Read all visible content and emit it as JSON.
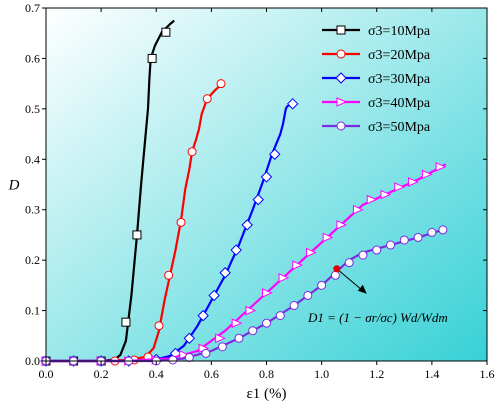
{
  "chart_data": {
    "type": "line",
    "xlabel": "ε1 (%)",
    "ylabel": "D",
    "xlim": [
      0,
      1.6
    ],
    "ylim": [
      0,
      0.7
    ],
    "xticks": [
      "0.0",
      "0.2",
      "0.4",
      "0.6",
      "0.8",
      "1.0",
      "1.2",
      "1.4",
      "1.6"
    ],
    "yticks": [
      "0.0",
      "0.1",
      "0.2",
      "0.3",
      "0.4",
      "0.5",
      "0.6",
      "0.7"
    ],
    "background": {
      "from": "#ffffff",
      "to": "#36d1d6"
    },
    "legend_position": "top-right",
    "series": [
      {
        "name": "σ3=10Mpa",
        "label_main": "σ",
        "label_sub": "3",
        "label_rest": "=10Mpa",
        "color": "#000000",
        "marker": "square",
        "points": [
          [
            0.0,
            0
          ],
          [
            0.1,
            0
          ],
          [
            0.2,
            0
          ],
          [
            0.25,
            0.003
          ],
          [
            0.27,
            0.012
          ],
          [
            0.29,
            0.04
          ],
          [
            0.31,
            0.13
          ],
          [
            0.33,
            0.25
          ],
          [
            0.345,
            0.35
          ],
          [
            0.36,
            0.44
          ],
          [
            0.37,
            0.5
          ],
          [
            0.375,
            0.56
          ],
          [
            0.38,
            0.6
          ],
          [
            0.395,
            0.625
          ],
          [
            0.42,
            0.652
          ],
          [
            0.45,
            0.668
          ],
          [
            0.465,
            0.675
          ]
        ],
        "markers_at": [
          [
            0.0,
            0
          ],
          [
            0.1,
            0
          ],
          [
            0.2,
            0
          ],
          [
            0.29,
            0.077
          ],
          [
            0.33,
            0.25
          ],
          [
            0.385,
            0.6
          ],
          [
            0.435,
            0.652
          ]
        ]
      },
      {
        "name": "σ3=20Mpa",
        "label_main": "σ",
        "label_sub": "3",
        "label_rest": "=20Mpa",
        "color": "#ff0000",
        "marker": "circle",
        "points": [
          [
            0.0,
            0
          ],
          [
            0.2,
            0
          ],
          [
            0.3,
            0.002
          ],
          [
            0.36,
            0.008
          ],
          [
            0.39,
            0.025
          ],
          [
            0.41,
            0.06
          ],
          [
            0.43,
            0.12
          ],
          [
            0.45,
            0.17
          ],
          [
            0.47,
            0.22
          ],
          [
            0.49,
            0.28
          ],
          [
            0.505,
            0.34
          ],
          [
            0.52,
            0.38
          ],
          [
            0.53,
            0.415
          ],
          [
            0.545,
            0.44
          ],
          [
            0.555,
            0.46
          ],
          [
            0.565,
            0.49
          ],
          [
            0.575,
            0.505
          ],
          [
            0.585,
            0.52
          ],
          [
            0.61,
            0.535
          ],
          [
            0.635,
            0.548
          ],
          [
            0.645,
            0.552
          ]
        ],
        "markers_at": [
          [
            0.0,
            0
          ],
          [
            0.1,
            0
          ],
          [
            0.2,
            0
          ],
          [
            0.25,
            0
          ],
          [
            0.32,
            0.002
          ],
          [
            0.37,
            0.008
          ],
          [
            0.41,
            0.07
          ],
          [
            0.445,
            0.17
          ],
          [
            0.49,
            0.275
          ],
          [
            0.53,
            0.415
          ],
          [
            0.585,
            0.52
          ],
          [
            0.635,
            0.55
          ]
        ]
      },
      {
        "name": "σ3=30Mpa",
        "label_main": "σ",
        "label_sub": "3",
        "label_rest": "=30Mpa",
        "color": "#0000ff",
        "marker": "diamond",
        "points": [
          [
            0.0,
            0
          ],
          [
            0.3,
            0
          ],
          [
            0.4,
            0.003
          ],
          [
            0.45,
            0.01
          ],
          [
            0.5,
            0.03
          ],
          [
            0.55,
            0.07
          ],
          [
            0.6,
            0.12
          ],
          [
            0.65,
            0.17
          ],
          [
            0.7,
            0.23
          ],
          [
            0.75,
            0.3
          ],
          [
            0.79,
            0.36
          ],
          [
            0.82,
            0.41
          ],
          [
            0.85,
            0.45
          ],
          [
            0.86,
            0.47
          ],
          [
            0.87,
            0.5
          ],
          [
            0.875,
            0.505
          ],
          [
            0.9,
            0.512
          ]
        ],
        "markers_at": [
          [
            0.0,
            0
          ],
          [
            0.1,
            0
          ],
          [
            0.2,
            0
          ],
          [
            0.3,
            0
          ],
          [
            0.4,
            0.003
          ],
          [
            0.47,
            0.015
          ],
          [
            0.52,
            0.045
          ],
          [
            0.57,
            0.09
          ],
          [
            0.61,
            0.13
          ],
          [
            0.65,
            0.175
          ],
          [
            0.69,
            0.22
          ],
          [
            0.73,
            0.27
          ],
          [
            0.77,
            0.32
          ],
          [
            0.8,
            0.365
          ],
          [
            0.83,
            0.41
          ],
          [
            0.895,
            0.51
          ]
        ]
      },
      {
        "name": "σ3=40Mpa",
        "label_main": "σ",
        "label_sub": "3",
        "label_rest": "=40Mpa",
        "color": "#ff00ff",
        "marker": "triangle-right",
        "points": [
          [
            0.0,
            0
          ],
          [
            0.3,
            0
          ],
          [
            0.45,
            0.005
          ],
          [
            0.55,
            0.02
          ],
          [
            0.65,
            0.06
          ],
          [
            0.75,
            0.11
          ],
          [
            0.85,
            0.16
          ],
          [
            0.95,
            0.21
          ],
          [
            1.05,
            0.26
          ],
          [
            1.1,
            0.285
          ],
          [
            1.15,
            0.31
          ],
          [
            1.25,
            0.335
          ],
          [
            1.35,
            0.36
          ],
          [
            1.45,
            0.39
          ]
        ],
        "markers_at": [
          [
            0.0,
            0
          ],
          [
            0.1,
            0
          ],
          [
            0.2,
            0
          ],
          [
            0.3,
            0
          ],
          [
            0.4,
            0.002
          ],
          [
            0.5,
            0.012
          ],
          [
            0.57,
            0.025
          ],
          [
            0.63,
            0.045
          ],
          [
            0.69,
            0.075
          ],
          [
            0.74,
            0.1
          ],
          [
            0.8,
            0.135
          ],
          [
            0.86,
            0.165
          ],
          [
            0.91,
            0.19
          ],
          [
            0.96,
            0.215
          ],
          [
            1.02,
            0.245
          ],
          [
            1.07,
            0.27
          ],
          [
            1.13,
            0.3
          ],
          [
            1.18,
            0.32
          ],
          [
            1.23,
            0.33
          ],
          [
            1.28,
            0.345
          ],
          [
            1.33,
            0.355
          ],
          [
            1.38,
            0.37
          ],
          [
            1.43,
            0.385
          ]
        ]
      },
      {
        "name": "σ3=50Mpa",
        "label_main": "σ",
        "label_sub": "3",
        "label_rest": "=50Mpa",
        "color": "#7b2be0",
        "marker": "circle",
        "points": [
          [
            0.0,
            0
          ],
          [
            0.4,
            0
          ],
          [
            0.5,
            0.005
          ],
          [
            0.6,
            0.02
          ],
          [
            0.7,
            0.045
          ],
          [
            0.8,
            0.075
          ],
          [
            0.9,
            0.11
          ],
          [
            1.0,
            0.15
          ],
          [
            1.1,
            0.2
          ],
          [
            1.15,
            0.215
          ],
          [
            1.25,
            0.23
          ],
          [
            1.35,
            0.245
          ],
          [
            1.45,
            0.262
          ]
        ],
        "markers_at": [
          [
            0.0,
            0
          ],
          [
            0.1,
            0
          ],
          [
            0.2,
            0
          ],
          [
            0.3,
            0
          ],
          [
            0.4,
            0
          ],
          [
            0.46,
            0.002
          ],
          [
            0.52,
            0.007
          ],
          [
            0.58,
            0.015
          ],
          [
            0.64,
            0.028
          ],
          [
            0.7,
            0.045
          ],
          [
            0.75,
            0.06
          ],
          [
            0.8,
            0.075
          ],
          [
            0.85,
            0.09
          ],
          [
            0.9,
            0.11
          ],
          [
            0.95,
            0.13
          ],
          [
            1.0,
            0.15
          ],
          [
            1.05,
            0.17
          ],
          [
            1.1,
            0.195
          ],
          [
            1.15,
            0.21
          ],
          [
            1.2,
            0.22
          ],
          [
            1.25,
            0.23
          ],
          [
            1.3,
            0.24
          ],
          [
            1.35,
            0.245
          ],
          [
            1.4,
            0.255
          ],
          [
            1.44,
            0.26
          ]
        ]
      }
    ],
    "annotation": {
      "point": [
        1.055,
        0.183
      ],
      "color": "#e00000",
      "equation": {
        "lhs": "D",
        "lhs_sub": "1",
        "eq": " = (1 − ",
        "num": "σ",
        "num_sub": "r",
        "den": "σ",
        "den_sub": "c",
        "mid": ")",
        "num2": "W",
        "num2_sub": "d",
        "den2": "W",
        "den2_sub": "dm"
      }
    }
  }
}
